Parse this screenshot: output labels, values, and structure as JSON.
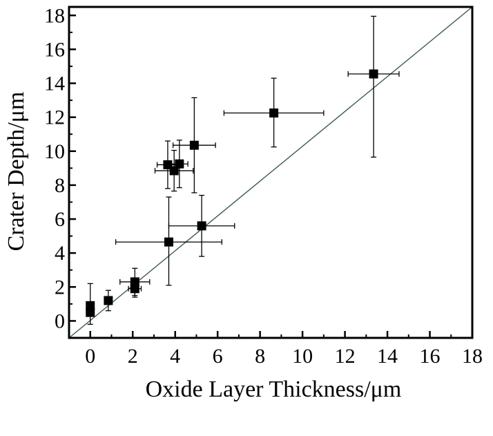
{
  "chart_data": {
    "type": "scatter",
    "title": "",
    "xlabel": "Oxide Layer Thickness/μm",
    "ylabel": "Crater Depth/μm",
    "xlim": [
      -1,
      18
    ],
    "ylim": [
      -1,
      18.5
    ],
    "xticks": [
      0,
      2,
      4,
      6,
      8,
      10,
      12,
      14,
      16,
      18
    ],
    "yticks": [
      0,
      2,
      4,
      6,
      8,
      10,
      12,
      14,
      16,
      18
    ],
    "grid": false,
    "legend": "none",
    "reference_line": {
      "from": [
        -1,
        -1
      ],
      "to": [
        18,
        18.5
      ],
      "color": "#3d5a5a"
    },
    "marker": {
      "shape": "square",
      "color": "#000000"
    },
    "points": [
      {
        "x": 0.0,
        "y": 0.9,
        "xerr": 0.0,
        "yerr_low": 1.1,
        "yerr_high": 1.3
      },
      {
        "x": 0.0,
        "y": 0.5,
        "xerr": 0.0,
        "yerr_low": 0.0,
        "yerr_high": 0.0
      },
      {
        "x": 0.85,
        "y": 1.2,
        "xerr": 0.0,
        "yerr_low": 0.6,
        "yerr_high": 0.6
      },
      {
        "x": 2.1,
        "y": 2.3,
        "xerr": 0.7,
        "yerr_low": 0.8,
        "yerr_high": 0.8
      },
      {
        "x": 2.1,
        "y": 1.9,
        "xerr": 0.3,
        "yerr_low": 0.5,
        "yerr_high": 0.5
      },
      {
        "x": 3.7,
        "y": 4.65,
        "xerr": 2.5,
        "yerr_low": 2.55,
        "yerr_high": 2.65
      },
      {
        "x": 5.25,
        "y": 5.6,
        "xerr": 1.55,
        "yerr_low": 1.8,
        "yerr_high": 1.8
      },
      {
        "x": 3.65,
        "y": 9.2,
        "xerr": 0.5,
        "yerr_low": 1.4,
        "yerr_high": 1.4
      },
      {
        "x": 3.95,
        "y": 8.85,
        "xerr": 0.9,
        "yerr_low": 1.2,
        "yerr_high": 1.2
      },
      {
        "x": 4.2,
        "y": 9.25,
        "xerr": 0.4,
        "yerr_low": 1.4,
        "yerr_high": 1.4
      },
      {
        "x": 4.9,
        "y": 10.35,
        "xerr": 1.0,
        "yerr_low": 2.8,
        "yerr_high": 2.8
      },
      {
        "x": 8.65,
        "y": 12.25,
        "xerr": 2.35,
        "yerr_low": 2.0,
        "yerr_high": 2.05
      },
      {
        "x": 13.35,
        "y": 14.55,
        "xerr": 1.2,
        "yerr_low": 4.9,
        "yerr_high": 3.4
      }
    ]
  }
}
